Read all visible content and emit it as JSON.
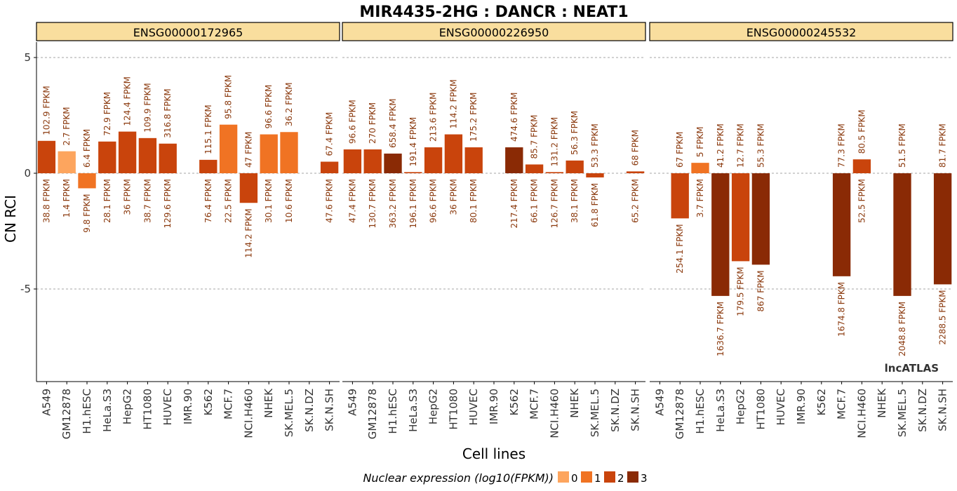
{
  "chart_data": {
    "type": "bar",
    "title": "MIR4435-2HG : DANCR : NEAT1",
    "xlabel": "Cell lines",
    "ylabel": "CN RCI",
    "ylim": [
      -9,
      5.9
    ],
    "yticks": [
      5,
      0,
      -5
    ],
    "grid": "dashed horizontal at ticks",
    "watermark": "lncATLAS",
    "legend": {
      "title": "Nuclear expression (log10(FPKM))",
      "position": "bottom",
      "items": [
        {
          "label": "0",
          "color": "#FDA55E"
        },
        {
          "label": "1",
          "color": "#F07323"
        },
        {
          "label": "2",
          "color": "#C9440C"
        },
        {
          "label": "3",
          "color": "#8A2A05"
        }
      ]
    },
    "categories": [
      "A549",
      "GM12878",
      "H1.hESC",
      "HeLa.S3",
      "HepG2",
      "HT1080",
      "HUVEC",
      "IMR.90",
      "K562",
      "MCF.7",
      "NCI.H460",
      "NHEK",
      "SK.MEL.5",
      "SK.N.DZ",
      "SK.N.SH"
    ],
    "panels": [
      {
        "name": "ENSG00000172965",
        "values": [
          1.4,
          0.95,
          -0.65,
          1.37,
          1.8,
          1.52,
          1.28,
          null,
          0.58,
          2.1,
          -1.28,
          1.68,
          1.78,
          null,
          0.5
        ],
        "level": [
          2,
          0,
          1,
          2,
          2,
          2,
          2,
          null,
          2,
          1,
          2,
          1,
          1,
          null,
          2
        ],
        "top_labels": [
          "102.9 FPKM",
          "2.7 FPKM",
          "6.4 FPKM",
          "72.9 FPKM",
          "124.4 FPKM",
          "109.9 FPKM",
          "316.8 FPKM",
          "",
          "115.1 FPKM",
          "95.8 FPKM",
          "47 FPKM",
          "96.6 FPKM",
          "36.2 FPKM",
          "",
          "67.4 FPKM"
        ],
        "bottom_labels": [
          "38.8 FPKM",
          "1.4 FPKM",
          "9.8 FPKM",
          "28.1 FPKM",
          "36 FPKM",
          "38.7 FPKM",
          "129.6 FPKM",
          "",
          "76.4 FPKM",
          "22.5 FPKM",
          "114.2 FPKM",
          "30.1 FPKM",
          "10.6 FPKM",
          "",
          "47.6 FPKM"
        ]
      },
      {
        "name": "ENSG00000226950",
        "values": [
          1.03,
          1.03,
          0.85,
          0.05,
          1.12,
          1.68,
          1.12,
          null,
          1.12,
          0.38,
          0.05,
          0.55,
          -0.18,
          null,
          0.08
        ],
        "level": [
          2,
          2,
          3,
          2,
          2,
          2,
          2,
          null,
          3,
          2,
          2,
          2,
          2,
          null,
          2
        ],
        "top_labels": [
          "96.6 FPKM",
          "270 FPKM",
          "658.4 FPKM",
          "191.4 FPKM",
          "213.6 FPKM",
          "114.2 FPKM",
          "175.2 FPKM",
          "",
          "474.6 FPKM",
          "85.7 FPKM",
          "131.2 FPKM",
          "56.3 FPKM",
          "53.3 FPKM",
          "",
          "68 FPKM"
        ],
        "bottom_labels": [
          "47.4 FPKM",
          "130.7 FPKM",
          "363.2 FPKM",
          "196.1 FPKM",
          "96.6 FPKM",
          "36 FPKM",
          "80.1 FPKM",
          "",
          "217.4 FPKM",
          "66.1 FPKM",
          "126.7 FPKM",
          "38.1 FPKM",
          "61.8 FPKM",
          "",
          "65.2 FPKM"
        ]
      },
      {
        "name": "ENSG00000245532",
        "values": [
          null,
          -1.95,
          0.45,
          -5.3,
          -3.8,
          -3.95,
          null,
          null,
          null,
          -4.45,
          0.6,
          null,
          -5.3,
          null,
          -4.8
        ],
        "level": [
          null,
          2,
          1,
          3,
          2,
          3,
          null,
          null,
          null,
          3,
          2,
          null,
          3,
          null,
          3
        ],
        "top_labels": [
          "",
          "67 FPKM",
          "5 FPKM",
          "41.2 FPKM",
          "12.7 FPKM",
          "55.3 FPKM",
          "",
          "",
          "",
          "77.3 FPKM",
          "80.5 FPKM",
          "",
          "51.5 FPKM",
          "",
          "81.7 FPKM"
        ],
        "bottom_labels": [
          "",
          "254.1 FPKM",
          "3.7 FPKM",
          "1636.7 FPKM",
          "179.5 FPKM",
          "867 FPKM",
          "",
          "",
          "",
          "1674.8 FPKM",
          "52.5 FPKM",
          "",
          "2048.8 FPKM",
          "",
          "2288.5 FPKM"
        ]
      }
    ]
  }
}
